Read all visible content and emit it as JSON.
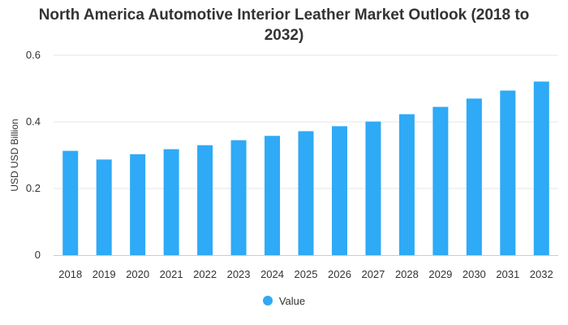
{
  "chart_data": {
    "type": "bar",
    "title_line1": "North America Automotive Interior Leather Market Outlook (2018 to",
    "title_line2": "2032)",
    "xlabel": "",
    "ylabel": "USD USD Billion",
    "categories": [
      "2018",
      "2019",
      "2020",
      "2021",
      "2022",
      "2023",
      "2024",
      "2025",
      "2026",
      "2027",
      "2028",
      "2029",
      "2030",
      "2031",
      "2032"
    ],
    "series": [
      {
        "name": "Value",
        "values": [
          0.313,
          0.287,
          0.303,
          0.318,
          0.33,
          0.345,
          0.358,
          0.372,
          0.387,
          0.401,
          0.423,
          0.445,
          0.47,
          0.494,
          0.521
        ]
      }
    ],
    "ylim": [
      0,
      0.6
    ],
    "yticks": [
      "0",
      "0.2",
      "0.4",
      "0.6"
    ],
    "grid": true,
    "legend_position": "bottom",
    "bar_color": "#2eaaf6"
  }
}
